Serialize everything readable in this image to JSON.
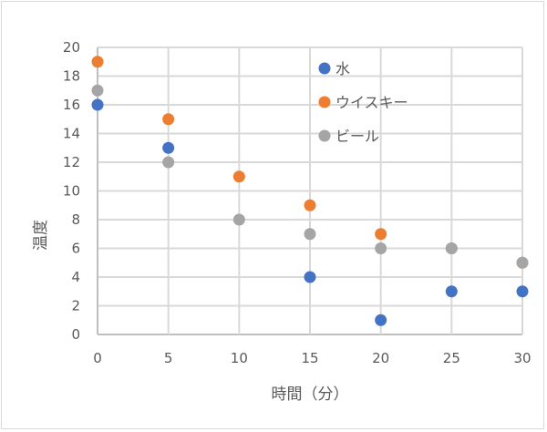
{
  "chart_data": {
    "type": "scatter",
    "title": "",
    "xlabel": "時間（分）",
    "ylabel": "温度",
    "xlim": [
      0,
      30
    ],
    "ylim": [
      0,
      20
    ],
    "x_ticks": [
      0,
      5,
      10,
      15,
      20,
      25,
      30
    ],
    "y_ticks": [
      0,
      2,
      4,
      6,
      8,
      10,
      12,
      14,
      16,
      18,
      20
    ],
    "grid": true,
    "legend_position": "inside-top-right",
    "series": [
      {
        "name": "水",
        "color": "#4472C4",
        "points": [
          [
            0,
            16
          ],
          [
            5,
            13
          ],
          [
            15,
            4
          ],
          [
            20,
            1
          ],
          [
            25,
            3
          ],
          [
            30,
            3
          ]
        ]
      },
      {
        "name": "ウイスキー",
        "color": "#ED7D31",
        "points": [
          [
            0,
            19
          ],
          [
            5,
            15
          ],
          [
            10,
            11
          ],
          [
            15,
            9
          ],
          [
            20,
            7
          ],
          [
            25,
            6
          ],
          [
            30,
            5
          ]
        ]
      },
      {
        "name": "ビール",
        "color": "#A5A5A5",
        "points": [
          [
            0,
            17
          ],
          [
            5,
            12
          ],
          [
            10,
            8
          ],
          [
            15,
            7
          ],
          [
            20,
            6
          ],
          [
            25,
            6
          ],
          [
            30,
            5
          ]
        ]
      }
    ]
  },
  "legend": {
    "items": [
      {
        "label": "水",
        "color": "#4472C4"
      },
      {
        "label": "ウイスキー",
        "color": "#ED7D31"
      },
      {
        "label": "ビール",
        "color": "#A5A5A5"
      }
    ]
  },
  "axes": {
    "x_title": "時間（分）",
    "y_title": "温度"
  }
}
